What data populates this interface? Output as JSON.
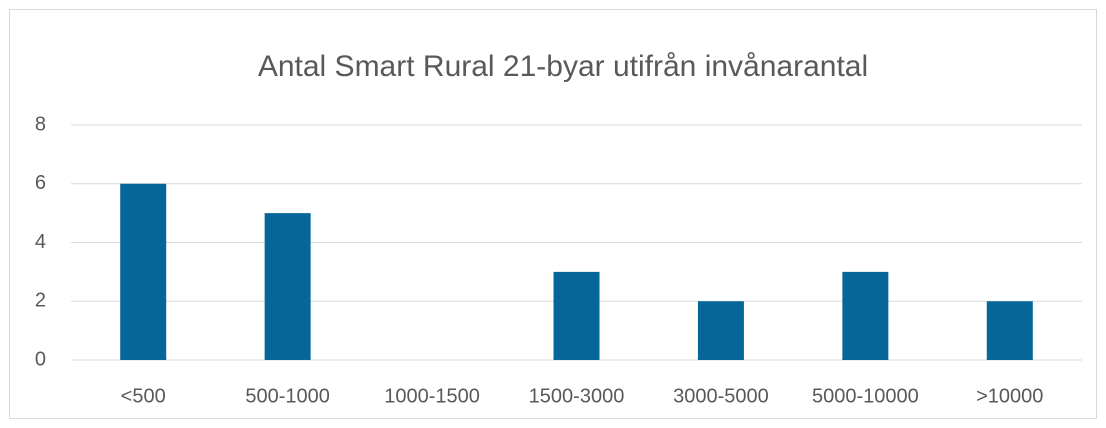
{
  "chart_data": {
    "type": "bar",
    "title": "Antal Smart Rural 21-byar utifrån invånarantal",
    "categories": [
      "<500",
      "500-1000",
      "1000-1500",
      "1500-3000",
      "3000-5000",
      "5000-10000",
      ">10000"
    ],
    "values": [
      6,
      5,
      0,
      3,
      2,
      3,
      2
    ],
    "color": "#06669a",
    "ylim": [
      0,
      8
    ],
    "yticks": [
      0,
      2,
      4,
      6,
      8
    ],
    "grid": true
  }
}
